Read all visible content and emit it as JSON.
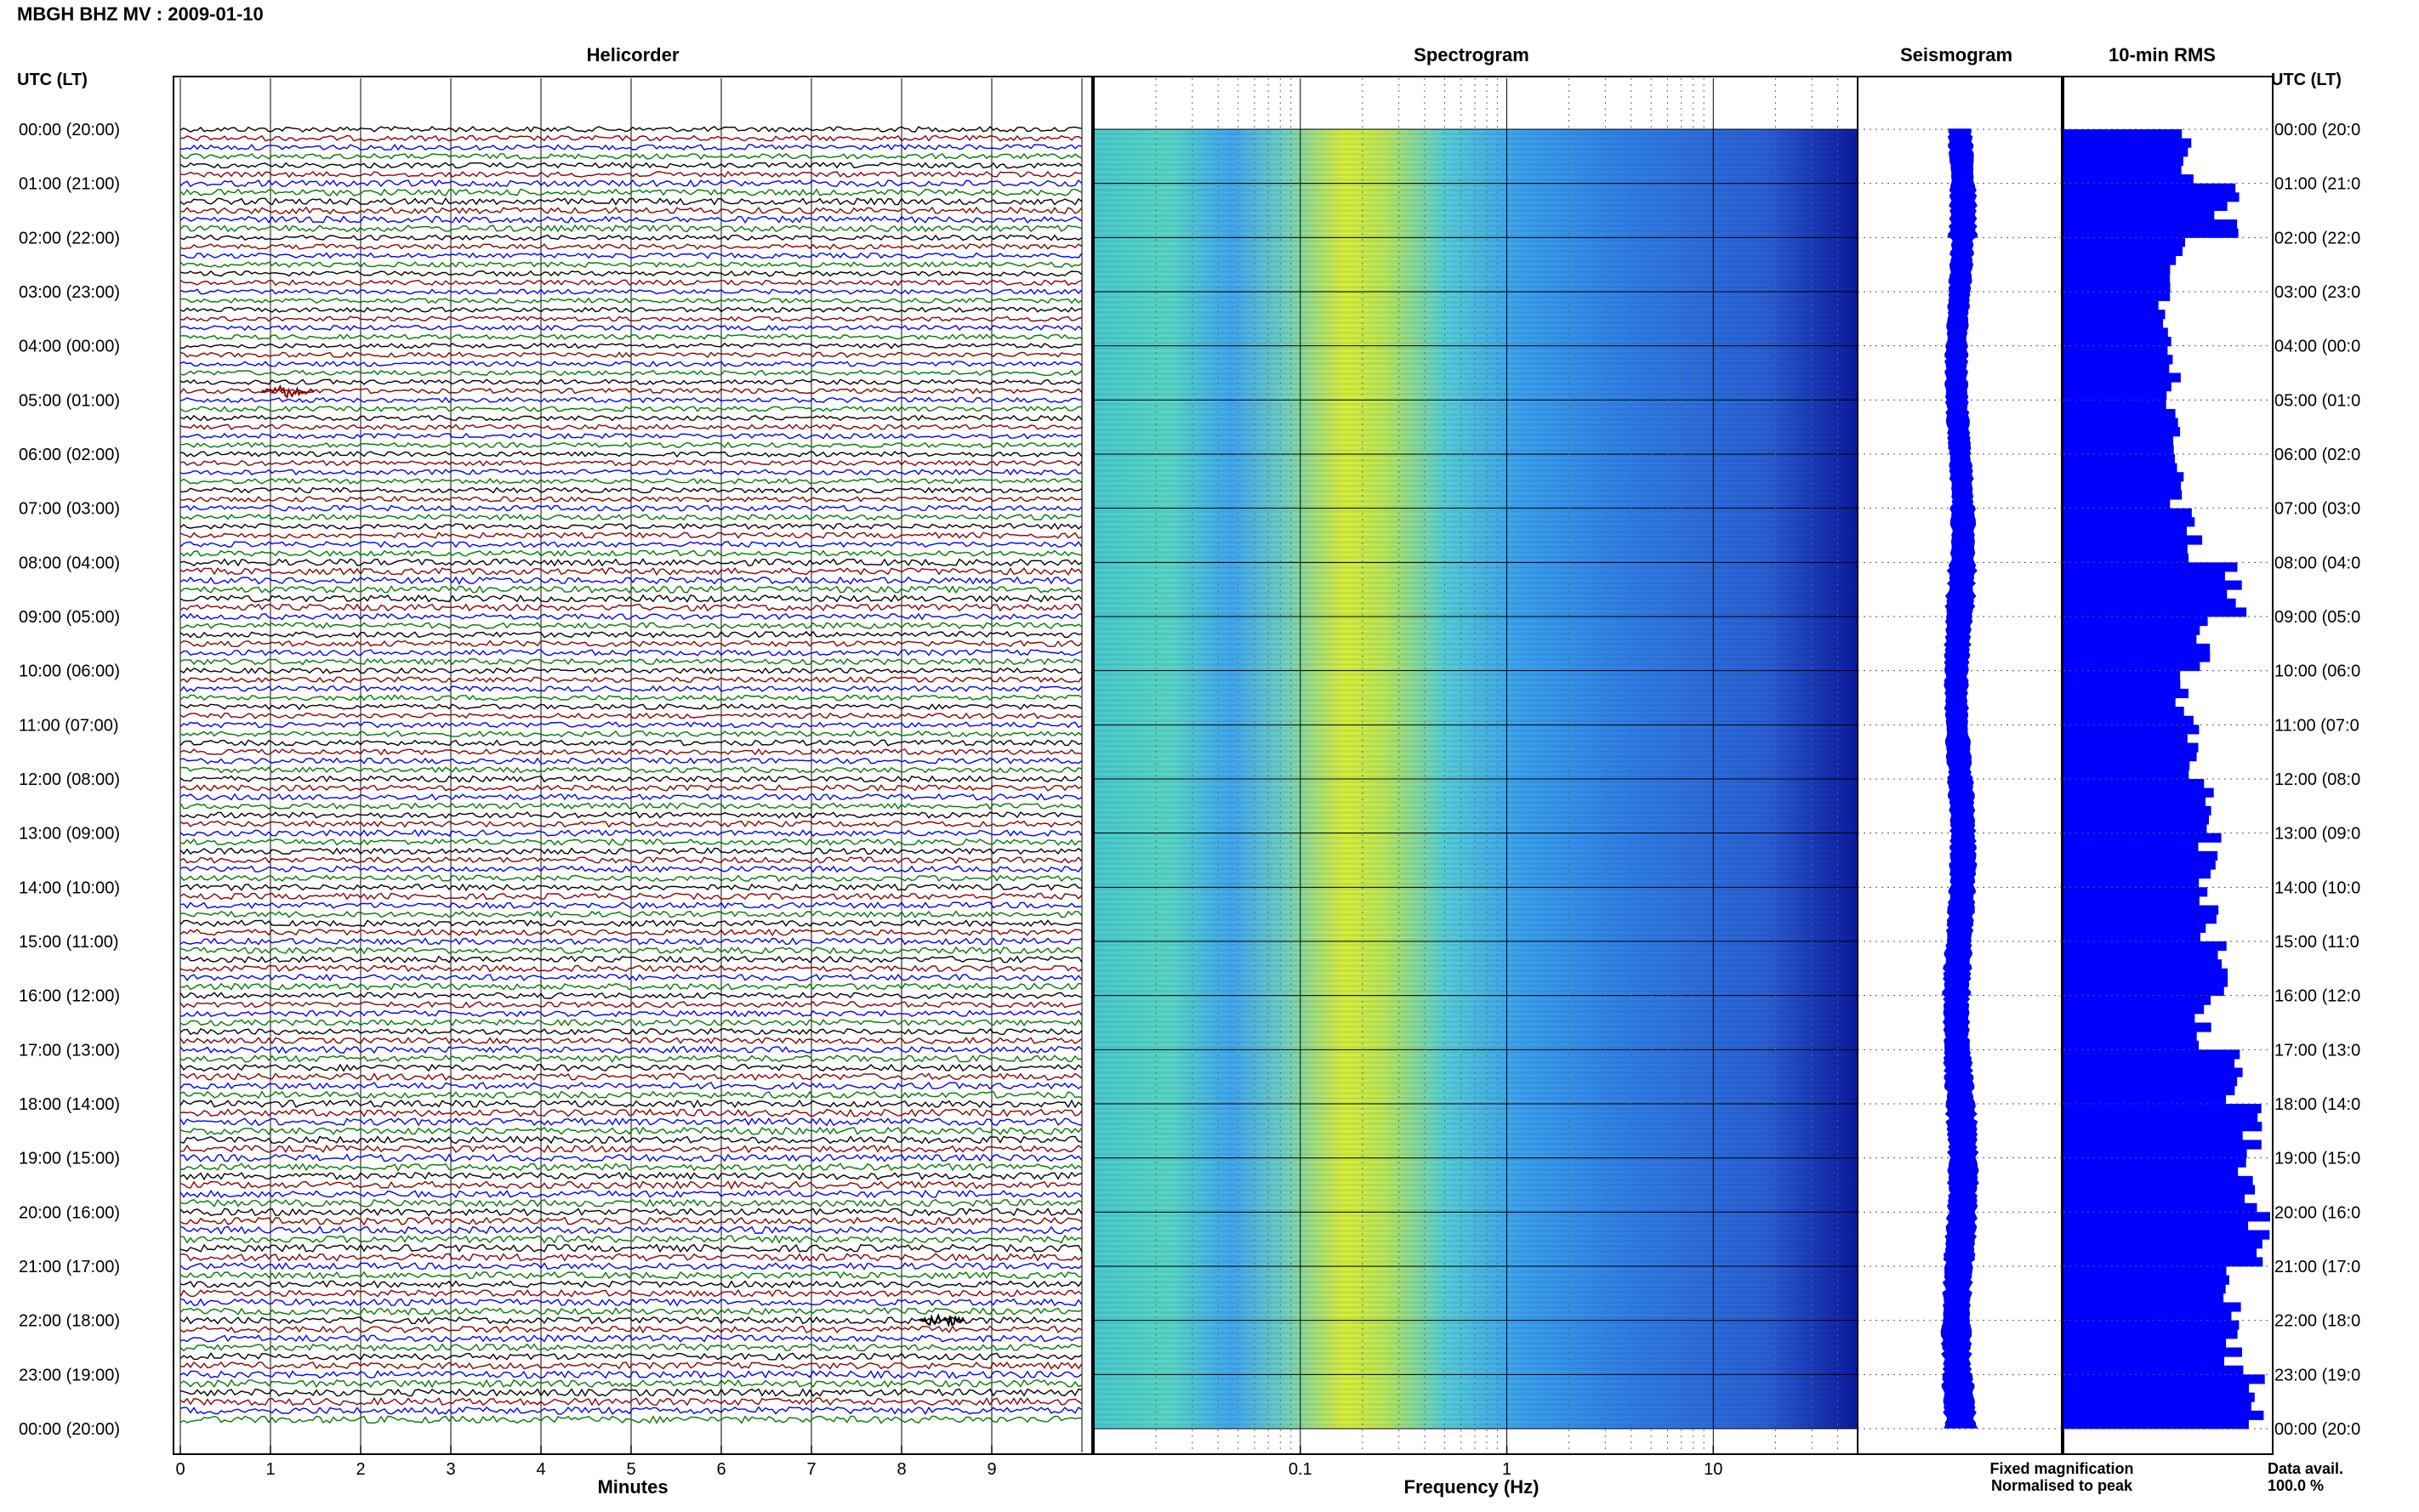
{
  "header": {
    "title": "MBGH BHZ MV : 2009-01-10",
    "left_axis_label": "UTC (LT)",
    "right_axis_label": "UTC (LT)"
  },
  "panels": {
    "helicorder": "Helicorder",
    "spectrogram": "Spectrogram",
    "seismogram": "Seismogram",
    "rms": "10-min RMS"
  },
  "time_labels": [
    "00:00 (20:00)",
    "01:00 (21:00)",
    "02:00 (22:00)",
    "03:00 (23:00)",
    "04:00 (00:00)",
    "05:00 (01:00)",
    "06:00 (02:00)",
    "07:00 (03:00)",
    "08:00 (04:00)",
    "09:00 (05:00)",
    "10:00 (06:00)",
    "11:00 (07:00)",
    "12:00 (08:00)",
    "13:00 (09:00)",
    "14:00 (10:00)",
    "15:00 (11:00)",
    "16:00 (12:00)",
    "17:00 (13:00)",
    "18:00 (14:00)",
    "19:00 (15:00)",
    "20:00 (16:00)",
    "21:00 (17:00)",
    "22:00 (18:00)",
    "23:00 (19:00)",
    "00:00 (20:00)"
  ],
  "right_time_labels": [
    "00:00 (20:0",
    "01:00 (21:0",
    "02:00 (22:0",
    "03:00 (23:0",
    "04:00 (00:0",
    "05:00 (01:0",
    "06:00 (02:0",
    "07:00 (03:0",
    "08:00 (04:0",
    "09:00 (05:0",
    "10:00 (06:0",
    "11:00 (07:0",
    "12:00 (08:0",
    "13:00 (09:0",
    "14:00 (10:0",
    "15:00 (11:0",
    "16:00 (12:0",
    "17:00 (13:0",
    "18:00 (14:0",
    "19:00 (15:0",
    "20:00 (16:0",
    "21:00 (17:0",
    "22:00 (18:0",
    "23:00 (19:0",
    "00:00 (20:0"
  ],
  "footer": {
    "fixed_magnification": "Fixed magnification",
    "normalised_to_peak": "Normalised to peak",
    "data_avail_label": "Data avail.",
    "data_avail_value": "100.0 %"
  },
  "colors": {
    "trace_cycle": [
      "#000000",
      "#8b0000",
      "#0000ff",
      "#007a00"
    ],
    "seismogram": "#0000ff",
    "rms": "#0000ff",
    "fixed_magnification": "#0000ff",
    "normalised_to_peak": "#ff0000",
    "spectrogram_scale": [
      "#1f2fa8",
      "#2a6be0",
      "#3fa6f0",
      "#55d6c8",
      "#b9e65a",
      "#f2f02a"
    ]
  },
  "chart_data": [
    {
      "type": "line",
      "title": "Helicorder",
      "xlabel": "Minutes",
      "xlim": [
        0,
        10
      ],
      "xticks": [
        0,
        1,
        2,
        3,
        4,
        5,
        6,
        7,
        8,
        9
      ],
      "rows": 144,
      "row_interval_min": 10,
      "ylabel": "UTC (LT)",
      "events": [
        {
          "row": 29,
          "minute_start": 0.9,
          "minute_end": 1.5
        },
        {
          "row": 132,
          "minute_start": 8.2,
          "minute_end": 8.7
        }
      ]
    },
    {
      "type": "heatmap",
      "title": "Spectrogram",
      "xlabel": "Frequency (Hz)",
      "xscale": "log",
      "xlim": [
        0.01,
        50
      ],
      "xticks": [
        0.1,
        1,
        10
      ],
      "xticklabels": [
        "0.1",
        "1",
        "10"
      ],
      "peak_band_hz": [
        0.2,
        0.4
      ],
      "ylabel": "UTC (LT)"
    },
    {
      "type": "line",
      "title": "Seismogram",
      "note": "24 h trace, 0-24 UTC"
    },
    {
      "type": "bar",
      "title": "10-min RMS",
      "orientation": "horizontal",
      "bins": 144,
      "relative_values_by_hour": [
        0.6,
        0.78,
        0.55,
        0.48,
        0.52,
        0.52,
        0.55,
        0.62,
        0.82,
        0.68,
        0.58,
        0.62,
        0.68,
        0.7,
        0.7,
        0.75,
        0.68,
        0.82,
        0.88,
        0.88,
        0.92,
        0.8,
        0.82,
        0.92
      ]
    }
  ]
}
